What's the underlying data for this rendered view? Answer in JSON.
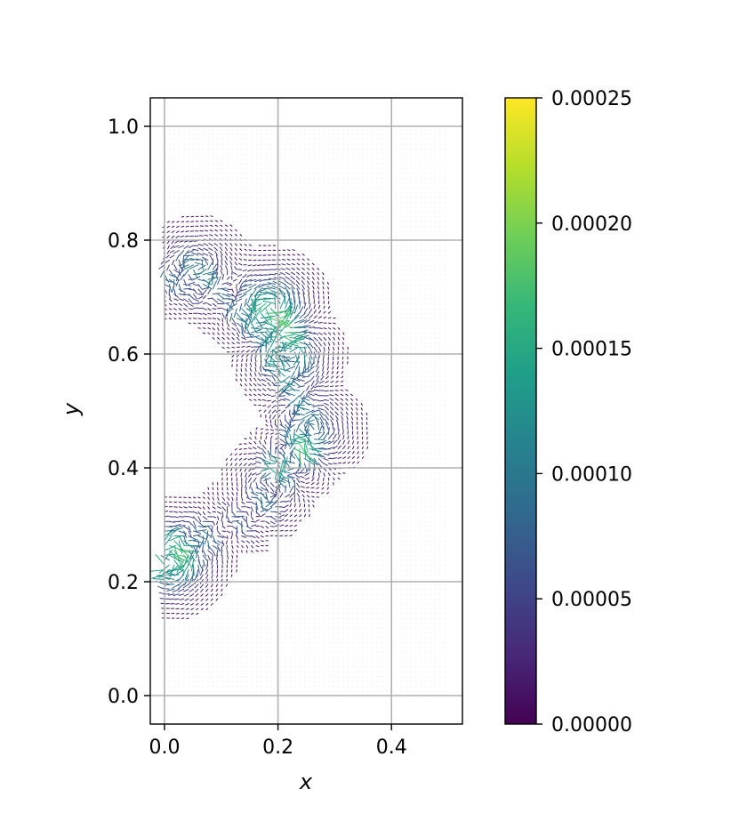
{
  "chart_data": {
    "type": "quiver",
    "xlabel": "x",
    "ylabel": "y",
    "xlim": [
      -0.025,
      0.525
    ],
    "ylim": [
      -0.05,
      1.05
    ],
    "xticks": [
      "0.0",
      "0.2",
      "0.4"
    ],
    "xtick_values": [
      0.0,
      0.2,
      0.4
    ],
    "yticks": [
      "0.0",
      "0.2",
      "0.4",
      "0.6",
      "0.8",
      "1.0"
    ],
    "ytick_values": [
      0.0,
      0.2,
      0.4,
      0.6,
      0.8,
      1.0
    ],
    "grid": true,
    "domain": {
      "x": [
        0.0,
        0.5
      ],
      "y": [
        0.0,
        1.0
      ]
    },
    "colormap": "viridis",
    "colorbar": {
      "range": [
        0.0,
        0.00025
      ],
      "ticks": [
        "0.00000",
        "0.00005",
        "0.00010",
        "0.00015",
        "0.00020",
        "0.00025"
      ],
      "tick_values": [
        0.0,
        5e-05,
        0.0001,
        0.00015,
        0.0002,
        0.00025
      ]
    },
    "colors": {
      "viridis_stops": [
        "#440154",
        "#482878",
        "#3e4989",
        "#31688e",
        "#26828e",
        "#1f9e89",
        "#35b779",
        "#6ece58",
        "#b5de2b",
        "#fde725"
      ],
      "grid": "#b0b0b0",
      "background_arrow": "#d9d4e6"
    },
    "feature_curve": {
      "description_free_points_x": [
        0.005,
        0.03,
        0.07,
        0.12,
        0.165,
        0.19,
        0.205,
        0.225,
        0.24,
        0.235,
        0.225,
        0.21,
        0.19,
        0.16,
        0.12,
        0.08,
        0.045,
        0.02,
        0.005
      ],
      "description_free_points_y": [
        0.74,
        0.745,
        0.72,
        0.695,
        0.665,
        0.63,
        0.6,
        0.56,
        0.51,
        0.47,
        0.43,
        0.4,
        0.36,
        0.325,
        0.305,
        0.29,
        0.27,
        0.255,
        0.24
      ]
    },
    "vortices": [
      {
        "x": 0.19,
        "y": 0.68,
        "magnitude": 0.00022
      },
      {
        "x": 0.22,
        "y": 0.6,
        "magnitude": 0.00015
      },
      {
        "x": 0.26,
        "y": 0.46,
        "magnitude": 0.00014
      },
      {
        "x": 0.23,
        "y": 0.42,
        "magnitude": 0.00012
      },
      {
        "x": 0.19,
        "y": 0.38,
        "magnitude": 8e-05
      },
      {
        "x": 0.01,
        "y": 0.24,
        "magnitude": 0.00022
      },
      {
        "x": 0.06,
        "y": 0.75,
        "magnitude": 9e-05
      }
    ]
  }
}
